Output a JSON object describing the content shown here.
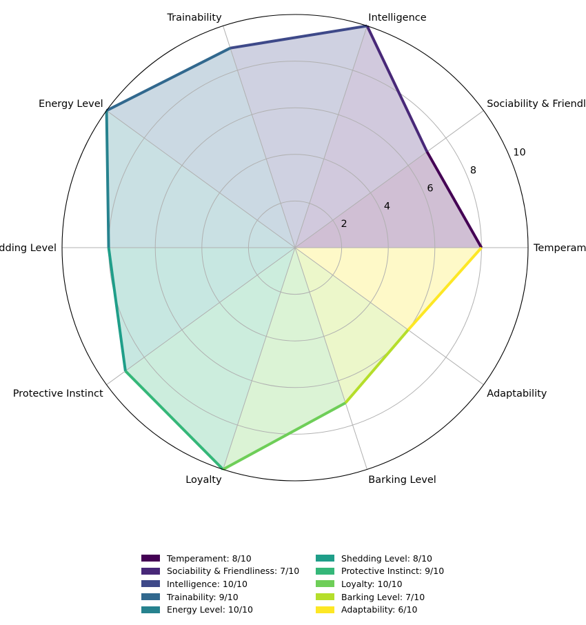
{
  "chart_data": {
    "type": "radar",
    "title": "",
    "rmax": 10,
    "r_ticks": [
      2,
      4,
      6,
      8,
      10
    ],
    "grid": true,
    "legend_position": "bottom-center",
    "categories": [
      "Temperament",
      "Sociability & Friendliness",
      "Intelligence",
      "Trainability",
      "Energy Level",
      "Shedding Level",
      "Protective Instinct",
      "Loyalty",
      "Barking Level",
      "Adaptability"
    ],
    "values": [
      8,
      7,
      10,
      9,
      10,
      8,
      9,
      10,
      7,
      6
    ],
    "colors": [
      "#440154",
      "#482878",
      "#3e4989",
      "#31688e",
      "#26828e",
      "#1f9e89",
      "#35b779",
      "#6ece58",
      "#b5de2b",
      "#fde725"
    ],
    "legend": [
      "Temperament: 8/10",
      "Sociability & Friendliness: 7/10",
      "Intelligence: 10/10",
      "Trainability: 9/10",
      "Energy Level: 10/10",
      "Shedding Level: 8/10",
      "Protective Instinct: 9/10",
      "Loyalty: 10/10",
      "Barking Level: 7/10",
      "Adaptability: 6/10"
    ]
  }
}
